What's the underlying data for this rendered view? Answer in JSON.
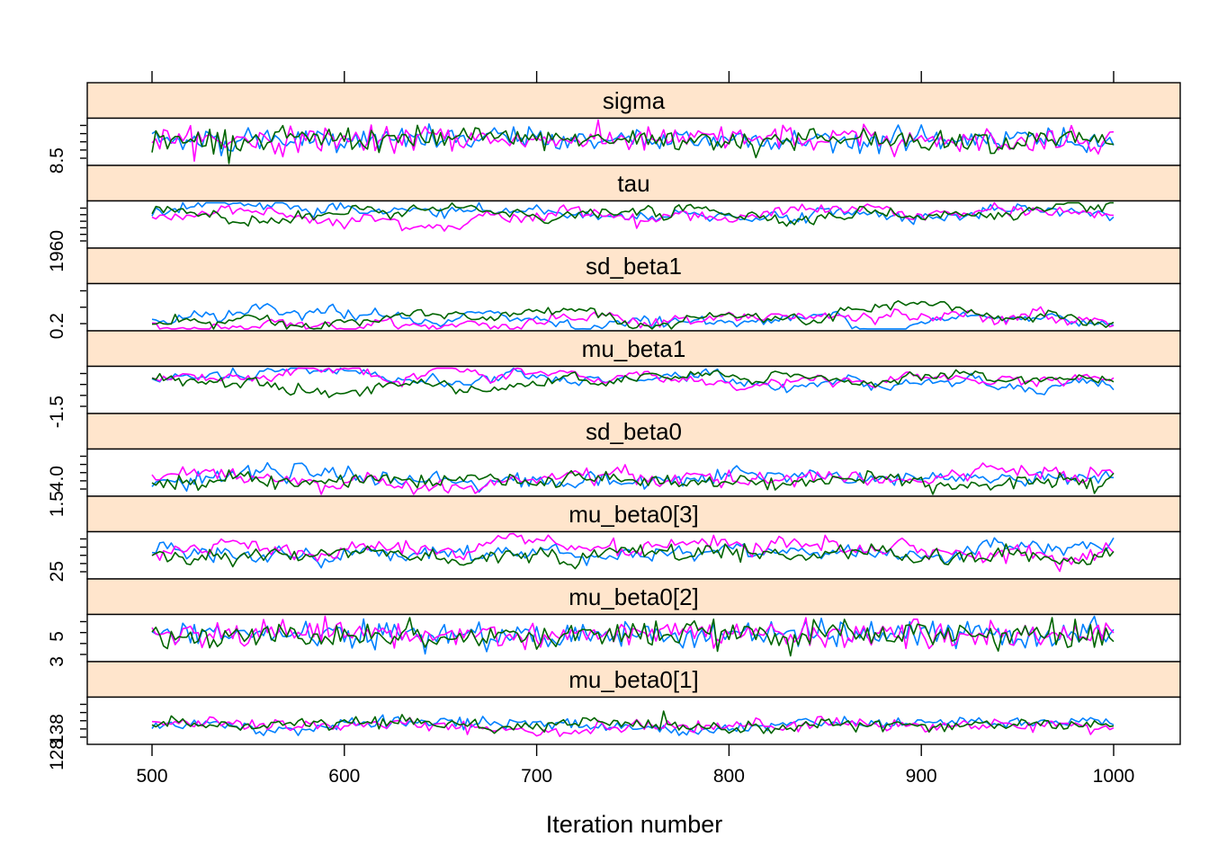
{
  "chart_data": {
    "type": "line",
    "xlabel": "Iteration number",
    "xlim": [
      500,
      1000
    ],
    "x_ticks": [
      "500",
      "600",
      "700",
      "800",
      "900",
      "1000"
    ],
    "iterations": {
      "start": 500,
      "end": 1000,
      "step": 2
    },
    "series_colors": [
      "#0080ff",
      "#ff00ff",
      "#006400"
    ],
    "panels": [
      {
        "name": "sigma",
        "y_tick_labels": [
          "8.5"
        ],
        "center": 0.55,
        "amplitude": 0.13,
        "drift": 0.02,
        "minor_ticks": 5
      },
      {
        "name": "tau",
        "y_tick_labels": [
          "1960"
        ],
        "center": 0.72,
        "amplitude": 0.05,
        "drift": 0.1,
        "minor_ticks": 6
      },
      {
        "name": "sd_beta1",
        "y_tick_labels": [
          "0.2"
        ],
        "center": 0.22,
        "amplitude": 0.04,
        "drift": 0.13,
        "minor_ticks": 3
      },
      {
        "name": "mu_beta1",
        "y_tick_labels": [
          "-1.5"
        ],
        "center": 0.72,
        "amplitude": 0.04,
        "drift": 0.12,
        "minor_ticks": 4
      },
      {
        "name": "sd_beta0",
        "y_tick_labels": [
          "1.5",
          "4.0"
        ],
        "center": 0.36,
        "amplitude": 0.07,
        "drift": 0.1,
        "minor_ticks": 5
      },
      {
        "name": "mu_beta0[3]",
        "y_tick_labels": [
          "25"
        ],
        "center": 0.57,
        "amplitude": 0.07,
        "drift": 0.12,
        "minor_ticks": 5
      },
      {
        "name": "mu_beta0[2]",
        "y_tick_labels": [
          "3",
          "5"
        ],
        "center": 0.57,
        "amplitude": 0.14,
        "drift": 0.02,
        "minor_ticks": 4
      },
      {
        "name": "mu_beta0[1]",
        "y_tick_labels": [
          "128",
          "138"
        ],
        "center": 0.4,
        "amplitude": 0.06,
        "drift": 0.05,
        "minor_ticks": 5
      }
    ]
  }
}
